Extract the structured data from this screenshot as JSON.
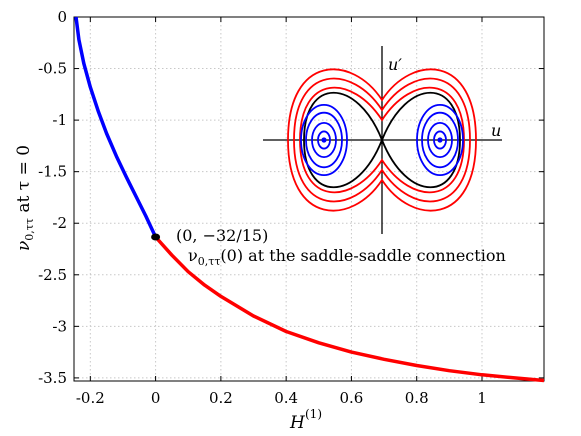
{
  "chart_data": {
    "type": "line",
    "xlabel": "H",
    "xlabel_sup": "(1)",
    "ylabel": "ν0,ττ at τ = 0",
    "xlim": [
      -0.25,
      1.19
    ],
    "ylim": [
      -3.53,
      0.0
    ],
    "xticks": [
      {
        "v": -0.2,
        "label": "-0.2"
      },
      {
        "v": 0,
        "label": "0"
      },
      {
        "v": 0.2,
        "label": "0.2"
      },
      {
        "v": 0.4,
        "label": "0.4"
      },
      {
        "v": 0.6,
        "label": "0.6"
      },
      {
        "v": 0.8,
        "label": "0.8"
      },
      {
        "v": 1,
        "label": "1"
      }
    ],
    "yticks": [
      {
        "v": 0,
        "label": "0"
      },
      {
        "v": -0.5,
        "label": "-0.5"
      },
      {
        "v": -1,
        "label": "-1"
      },
      {
        "v": -1.5,
        "label": "-1.5"
      },
      {
        "v": -2,
        "label": "-2"
      },
      {
        "v": -2.5,
        "label": "-2.5"
      },
      {
        "v": -3,
        "label": "-3"
      },
      {
        "v": -3.5,
        "label": "-3.5"
      }
    ],
    "grid": true,
    "series": [
      {
        "color": "#0000ff",
        "points": [
          [
            -0.244,
            0.0
          ],
          [
            -0.235,
            -0.22
          ],
          [
            -0.22,
            -0.45
          ],
          [
            -0.2,
            -0.68
          ],
          [
            -0.175,
            -0.92
          ],
          [
            -0.15,
            -1.13
          ],
          [
            -0.12,
            -1.35
          ],
          [
            -0.09,
            -1.55
          ],
          [
            -0.06,
            -1.74
          ],
          [
            -0.03,
            -1.93
          ],
          [
            0.0,
            -2.1333
          ]
        ]
      },
      {
        "color": "#ff0000",
        "points": [
          [
            0.0,
            -2.1333
          ],
          [
            0.05,
            -2.31
          ],
          [
            0.1,
            -2.47
          ],
          [
            0.15,
            -2.6
          ],
          [
            0.2,
            -2.71
          ],
          [
            0.3,
            -2.9
          ],
          [
            0.4,
            -3.05
          ],
          [
            0.5,
            -3.16
          ],
          [
            0.6,
            -3.25
          ],
          [
            0.7,
            -3.32
          ],
          [
            0.8,
            -3.38
          ],
          [
            0.9,
            -3.43
          ],
          [
            1.0,
            -3.47
          ],
          [
            1.1,
            -3.5
          ],
          [
            1.19,
            -3.525
          ]
        ]
      }
    ],
    "marker": {
      "x": 0,
      "y": -2.1333
    },
    "annotations": {
      "point_label": "(0, −32/15)",
      "caption": "ν0,ττ(0) at the saddle-saddle connection"
    },
    "inset": {
      "xlabel": "u",
      "ylabel": "u′",
      "colors": {
        "outer": "#ff0000",
        "separatrix": "#000000",
        "inner": "#0000ff"
      }
    }
  }
}
